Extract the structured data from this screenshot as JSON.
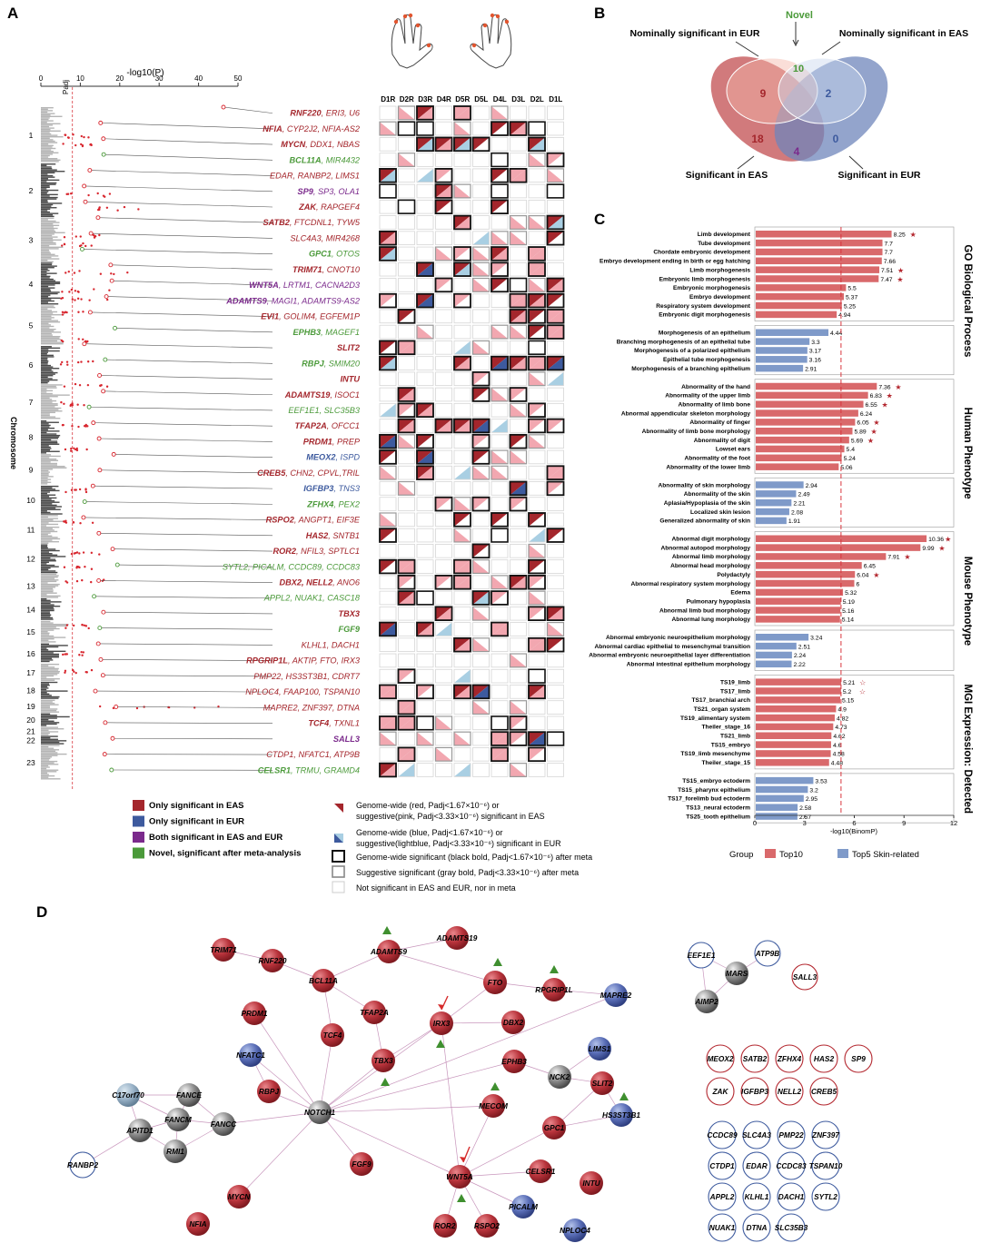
{
  "panels": {
    "a": "A",
    "b": "B",
    "c": "C",
    "d": "D"
  },
  "colors": {
    "eas_only": "#a4262c",
    "eur_only": "#3d5a9e",
    "both": "#7b2a8c",
    "novel": "#4b9a3a",
    "pink": "#f2a7b0",
    "lightblue": "#a9cfe3",
    "bar_top10": "#d9696b",
    "bar_skin": "#7f9ac9"
  },
  "panel_a": {
    "xaxis_title": "-log10(P)",
    "p_adj_label": "Padj",
    "xticks": [
      "0",
      "10",
      "20",
      "30",
      "40",
      "50"
    ],
    "yaxis_title": "Chromosome",
    "chromosomes": [
      "1",
      "2",
      "3",
      "4",
      "5",
      "6",
      "7",
      "8",
      "9",
      "10",
      "11",
      "12",
      "13",
      "14",
      "15",
      "16",
      "17",
      "18",
      "19",
      "20",
      "21",
      "22",
      "23"
    ],
    "digits": [
      "D1R",
      "D2R",
      "D3R",
      "D4R",
      "D5R",
      "D5L",
      "D4L",
      "D3L",
      "D2L",
      "D1L"
    ],
    "loci": [
      {
        "lead": "RNF220",
        "rest": ", ERI3, U6",
        "cls": "eas"
      },
      {
        "lead": "NFIA",
        "rest": ", CYP2J2, NFIA-AS2",
        "cls": "eas"
      },
      {
        "lead": "MYCN",
        "rest": ", DDX1, NBAS",
        "cls": "eas"
      },
      {
        "lead": "BCL11A",
        "rest": ", MIR4432",
        "cls": "novel"
      },
      {
        "lead": "",
        "rest": "EDAR, RANBP2, LIMS1",
        "cls": "eas"
      },
      {
        "lead": "SP9",
        "rest": ", SP3, OLA1",
        "cls": "both"
      },
      {
        "lead": "ZAK",
        "rest": ", RAPGEF4",
        "cls": "eas"
      },
      {
        "lead": "SATB2",
        "rest": ", FTCDNL1, TYW5",
        "cls": "eas"
      },
      {
        "lead": "",
        "rest": "SLC4A3, MIR4268",
        "cls": "eas"
      },
      {
        "lead": "GPC1",
        "rest": ", OTOS",
        "cls": "novel"
      },
      {
        "lead": "TRIM71",
        "rest": ", CNOT10",
        "cls": "eas"
      },
      {
        "lead": "WNT5A",
        "rest": ", LRTM1, CACNA2D3",
        "cls": "both"
      },
      {
        "lead": "ADAMTS9",
        "rest": ", MAGI1, ADAMTS9-AS2",
        "cls": "both"
      },
      {
        "lead": "EVI1",
        "rest": ", GOLIM4, EGFEM1P",
        "cls": "eas"
      },
      {
        "lead": "EPHB3",
        "rest": ", MAGEF1",
        "cls": "novel"
      },
      {
        "lead": "SLIT2",
        "rest": "",
        "cls": "eas"
      },
      {
        "lead": "RBPJ",
        "rest": ", SMIM20",
        "cls": "novel"
      },
      {
        "lead": "INTU",
        "rest": "",
        "cls": "eas"
      },
      {
        "lead": "ADAMTS19",
        "rest": ", ISOC1",
        "cls": "eas"
      },
      {
        "lead": "",
        "rest": "EEF1E1, SLC35B3",
        "cls": "novel"
      },
      {
        "lead": "TFAP2A",
        "rest": ", OFCC1",
        "cls": "eas"
      },
      {
        "lead": "PRDM1",
        "rest": ", PREP",
        "cls": "eas"
      },
      {
        "lead": "MEOX2",
        "rest": ", ISPD",
        "cls": "eur"
      },
      {
        "lead": "CREB5",
        "rest": ", CHN2, CPVL,TRIL",
        "cls": "eas"
      },
      {
        "lead": "IGFBP3",
        "rest": ", TNS3",
        "cls": "eur"
      },
      {
        "lead": "ZFHX4",
        "rest": ", PEX2",
        "cls": "novel"
      },
      {
        "lead": "RSPO2",
        "rest": ", ANGPT1, EIF3E",
        "cls": "eas"
      },
      {
        "lead": "HAS2",
        "rest": ", SNTB1",
        "cls": "eas"
      },
      {
        "lead": "ROR2",
        "rest": ", NFIL3, SPTLC1",
        "cls": "eas"
      },
      {
        "lead": "",
        "rest": "SYTL2, PICALM, CCDC89, CCDC83",
        "cls": "novel"
      },
      {
        "lead": "DBX2, NELL2",
        "rest": ", ANO6",
        "cls": "eas"
      },
      {
        "lead": "",
        "rest": "APPL2, NUAK1, CASC18",
        "cls": "novel"
      },
      {
        "lead": "TBX3",
        "rest": "",
        "cls": "eas"
      },
      {
        "lead": "FGF9",
        "rest": "",
        "cls": "novel"
      },
      {
        "lead": "",
        "rest": "KLHL1, DACH1",
        "cls": "eas"
      },
      {
        "lead": "RPGRIP1L",
        "rest": ", AKTIP, FTO, IRX3",
        "cls": "eas"
      },
      {
        "lead": "",
        "rest": "PMP22, HS3ST3B1, CDRT7",
        "cls": "eas"
      },
      {
        "lead": "",
        "rest": "NPLOC4, FAAP100, TSPAN10",
        "cls": "eas"
      },
      {
        "lead": "",
        "rest": "MAPRE2, ZNF397, DTNA",
        "cls": "eas"
      },
      {
        "lead": "TCF4",
        "rest": ", TXNL1",
        "cls": "eas"
      },
      {
        "lead": "SALL3",
        "rest": "",
        "cls": "both"
      },
      {
        "lead": "",
        "rest": "CTDP1, NFATC1, ATP9B",
        "cls": "eas"
      },
      {
        "lead": "CELSR1",
        "rest": ", TRMU, GRAMD4",
        "cls": "novel"
      }
    ],
    "legend_left": [
      {
        "label": "Only significant in EAS",
        "color": "#a4262c"
      },
      {
        "label": "Only significant in EUR",
        "color": "#3d5a9e"
      },
      {
        "label": "Both significant in EAS and EUR",
        "color": "#7b2a8c"
      },
      {
        "label": "Novel, significant after meta-analysis",
        "color": "#4b9a3a"
      }
    ],
    "legend_right": [
      "Genome-wide (red, Padj<1.67×10⁻⁶) or",
      "suggestive(pink, Padj<3.33×10⁻⁶) significant in EAS",
      "Genome-wide (blue, Padj<1.67×10⁻⁶) or",
      "suggestive(lightblue, Padj<3.33×10⁻⁶) significant in EUR",
      "Genome-wide significant (black bold, Padj<1.67×10⁻⁶) after meta",
      "Suggestive significant (gray bold, Padj<3.33×10⁻⁶) after meta",
      "Not significant in EAS and EUR, nor in meta"
    ]
  },
  "panel_b": {
    "novel_label": "Novel",
    "nom_eur": "Nominally significant in EUR",
    "nom_eas": "Nominally significant in EAS",
    "sig_eas": "Significant in EAS",
    "sig_eur": "Significant in EUR",
    "counts": {
      "novel": "10",
      "eas_nom": "9",
      "eur_nom": "2",
      "eas": "18",
      "both": "4",
      "eur": "0"
    }
  },
  "chart_data": {
    "type": "bar",
    "orientation": "horizontal",
    "xlabel": "-log10(BinomP)",
    "xlim": [
      0,
      12
    ],
    "xticks": [
      "0",
      "3",
      "6",
      "9",
      "12"
    ],
    "threshold_line": 5.2,
    "legend_title": "Group",
    "legend": [
      {
        "name": "Top10",
        "color": "#d9696b"
      },
      {
        "name": "Top5 Skin-related",
        "color": "#7f9ac9"
      }
    ],
    "sections": [
      {
        "title": "GO Biological Process",
        "top10": [
          [
            "Limb development",
            8.25,
            "s"
          ],
          [
            "Tube development",
            7.7,
            ""
          ],
          [
            "Chordate embryonic development",
            7.7,
            ""
          ],
          [
            "Embryo development ending in birth or egg hatching",
            7.66,
            ""
          ],
          [
            "Limb morphogenesis",
            7.51,
            "s"
          ],
          [
            "Embryonic limb morphogenesis",
            7.47,
            "s"
          ],
          [
            "Embryonic morphogenesis",
            5.5,
            ""
          ],
          [
            "Embryo development",
            5.37,
            ""
          ],
          [
            "Respiratory system development",
            5.25,
            ""
          ],
          [
            "Embryonic digit morphogenesis",
            4.94,
            ""
          ]
        ],
        "skin": [
          [
            "Morphogenesis of an epithelium",
            4.44,
            ""
          ],
          [
            "Branching morphogenesis of an epithelial tube",
            3.3,
            ""
          ],
          [
            "Morphogenesis of a polarized epithelium",
            3.17,
            ""
          ],
          [
            "Epithelial tube morphogenesis",
            3.16,
            ""
          ],
          [
            "Morphogenesis of a branching epithelium",
            2.91,
            ""
          ]
        ]
      },
      {
        "title": "Human Phenotype",
        "top10": [
          [
            "Abnormality of the hand",
            7.36,
            "s"
          ],
          [
            "Abnormality of the upper limb",
            6.83,
            "s"
          ],
          [
            "Abnormality of limb bone",
            6.55,
            "s"
          ],
          [
            "Abnormal appendicular skeleton morphology",
            6.24,
            ""
          ],
          [
            "Abnormality of finger",
            6.05,
            "s"
          ],
          [
            "Abnormality of limb bone morphology",
            5.89,
            "s"
          ],
          [
            "Abnormality of digit",
            5.69,
            "s"
          ],
          [
            "Lowset ears",
            5.4,
            ""
          ],
          [
            "Abnormality of the foot",
            5.24,
            ""
          ],
          [
            "Abnormality of the lower limb",
            5.06,
            ""
          ]
        ],
        "skin": [
          [
            "Abnormality of skin morphology",
            2.94,
            ""
          ],
          [
            "Abnormality of the skin",
            2.49,
            ""
          ],
          [
            "Aplasia/Hypoplasia of the skin",
            2.21,
            ""
          ],
          [
            "Localized skin lesion",
            2.08,
            ""
          ],
          [
            "Generalized abnormality of skin",
            1.91,
            ""
          ]
        ]
      },
      {
        "title": "Mouse Phenotype",
        "top10": [
          [
            "Abnormal digit morphology",
            10.36,
            "s"
          ],
          [
            "Abnormal autopod morphology",
            9.99,
            "s"
          ],
          [
            "Abnormal limb morphology",
            7.91,
            "s"
          ],
          [
            "Abnormal head morphology",
            6.45,
            ""
          ],
          [
            "Polydactyly",
            6.04,
            "s"
          ],
          [
            "Abnormal respiratory system morphology",
            6.0,
            ""
          ],
          [
            "Edema",
            5.32,
            ""
          ],
          [
            "Pulmonary hypoplasia",
            5.19,
            ""
          ],
          [
            "Abnormal limb bud morphology",
            5.16,
            ""
          ],
          [
            "Abnormal lung morphology",
            5.14,
            ""
          ]
        ],
        "skin": [
          [
            "Abnormal embryonic neuroepithelium morphology",
            3.24,
            ""
          ],
          [
            "Abnormal cardiac epithelial to mesenchymal transition",
            2.51,
            ""
          ],
          [
            "Abnormal embryonic neuroepithelial layer differentiation",
            2.24,
            ""
          ],
          [
            "Abnormal intestinal epithelium morphology",
            2.22,
            ""
          ]
        ]
      },
      {
        "title": "MGI Expression: Detected",
        "top10": [
          [
            "TS19_limb",
            5.21,
            "o"
          ],
          [
            "TS17_limb",
            5.2,
            "o"
          ],
          [
            "TS17_branchial arch",
            5.15,
            ""
          ],
          [
            "TS21_organ system",
            4.9,
            ""
          ],
          [
            "TS19_alimentary system",
            4.82,
            ""
          ],
          [
            "Theiler_stage_16",
            4.73,
            ""
          ],
          [
            "TS21_limb",
            4.62,
            ""
          ],
          [
            "TS15_embryo",
            4.6,
            ""
          ],
          [
            "TS19_limb mesenchyme",
            4.58,
            ""
          ],
          [
            "Theiler_stage_15",
            4.48,
            ""
          ]
        ],
        "skin": [
          [
            "TS15_embryo ectoderm",
            3.53,
            ""
          ],
          [
            "TS15_pharynx epithelium",
            3.2,
            ""
          ],
          [
            "TS17_forelimb bud ectoderm",
            2.95,
            ""
          ],
          [
            "TS13_neural ectoderm",
            2.58,
            ""
          ],
          [
            "TS25_tooth epithelium",
            2.57,
            ""
          ]
        ]
      }
    ]
  },
  "panel_d": {
    "nodes": [
      {
        "id": "TRIM71",
        "t": "r"
      },
      {
        "id": "RNF220",
        "t": "r"
      },
      {
        "id": "BCL11A",
        "t": "r"
      },
      {
        "id": "ADAMTS9",
        "t": "r"
      },
      {
        "id": "ADAMTS19",
        "t": "r"
      },
      {
        "id": "FTO",
        "t": "r"
      },
      {
        "id": "RPGRIP1L",
        "t": "r"
      },
      {
        "id": "MAPRE2",
        "t": "b"
      },
      {
        "id": "PRDM1",
        "t": "r"
      },
      {
        "id": "TFAP2A",
        "t": "r"
      },
      {
        "id": "IRX3",
        "t": "r"
      },
      {
        "id": "DBX2",
        "t": "r"
      },
      {
        "id": "TCF4",
        "t": "r"
      },
      {
        "id": "NFATC1",
        "t": "b"
      },
      {
        "id": "TBX3",
        "t": "r"
      },
      {
        "id": "EPHB3",
        "t": "r"
      },
      {
        "id": "LIMS1",
        "t": "b"
      },
      {
        "id": "NCK2",
        "t": "g"
      },
      {
        "id": "SLIT2",
        "t": "r"
      },
      {
        "id": "RBPJ",
        "t": "r"
      },
      {
        "id": "C17orf70",
        "t": "lb"
      },
      {
        "id": "FANCE",
        "t": "g"
      },
      {
        "id": "FANCM",
        "t": "g"
      },
      {
        "id": "FANCC",
        "t": "g"
      },
      {
        "id": "APITD1",
        "t": "g"
      },
      {
        "id": "RMI1",
        "t": "g"
      },
      {
        "id": "RANBP2",
        "t": "o"
      },
      {
        "id": "NOTCH1",
        "t": "g"
      },
      {
        "id": "MECOM",
        "t": "r"
      },
      {
        "id": "HS3ST3B1",
        "t": "b"
      },
      {
        "id": "GPC1",
        "t": "r"
      },
      {
        "id": "FGF9",
        "t": "r"
      },
      {
        "id": "WNT5A",
        "t": "r"
      },
      {
        "id": "CELSR1",
        "t": "r"
      },
      {
        "id": "INTU",
        "t": "r"
      },
      {
        "id": "PICALM",
        "t": "b"
      },
      {
        "id": "MYCN",
        "t": "r"
      },
      {
        "id": "NFIA",
        "t": "r"
      },
      {
        "id": "ROR2",
        "t": "r"
      },
      {
        "id": "RSPO2",
        "t": "r"
      },
      {
        "id": "NPLOC4",
        "t": "b"
      },
      {
        "id": "EEF1E1",
        "t": "o"
      },
      {
        "id": "ATP9B",
        "t": "o"
      },
      {
        "id": "MARS",
        "t": "g"
      },
      {
        "id": "AIMP2",
        "t": "g"
      },
      {
        "id": "SALL3",
        "t": "or"
      }
    ],
    "isolated_red": [
      "MEOX2",
      "SATB2",
      "ZFHX4",
      "HAS2",
      "SP9",
      "ZAK",
      "IGFBP3",
      "NELL2",
      "CREB5"
    ],
    "isolated_blue": [
      "CCDC89",
      "SLC4A3",
      "PMP22",
      "ZNF397",
      "CTDP1",
      "EDAR",
      "CCDC83",
      "TSPAN10",
      "APPL2",
      "KLHL1",
      "DACH1",
      "SYTL2",
      "NUAK1",
      "DTNA",
      "SLC35B3"
    ]
  }
}
